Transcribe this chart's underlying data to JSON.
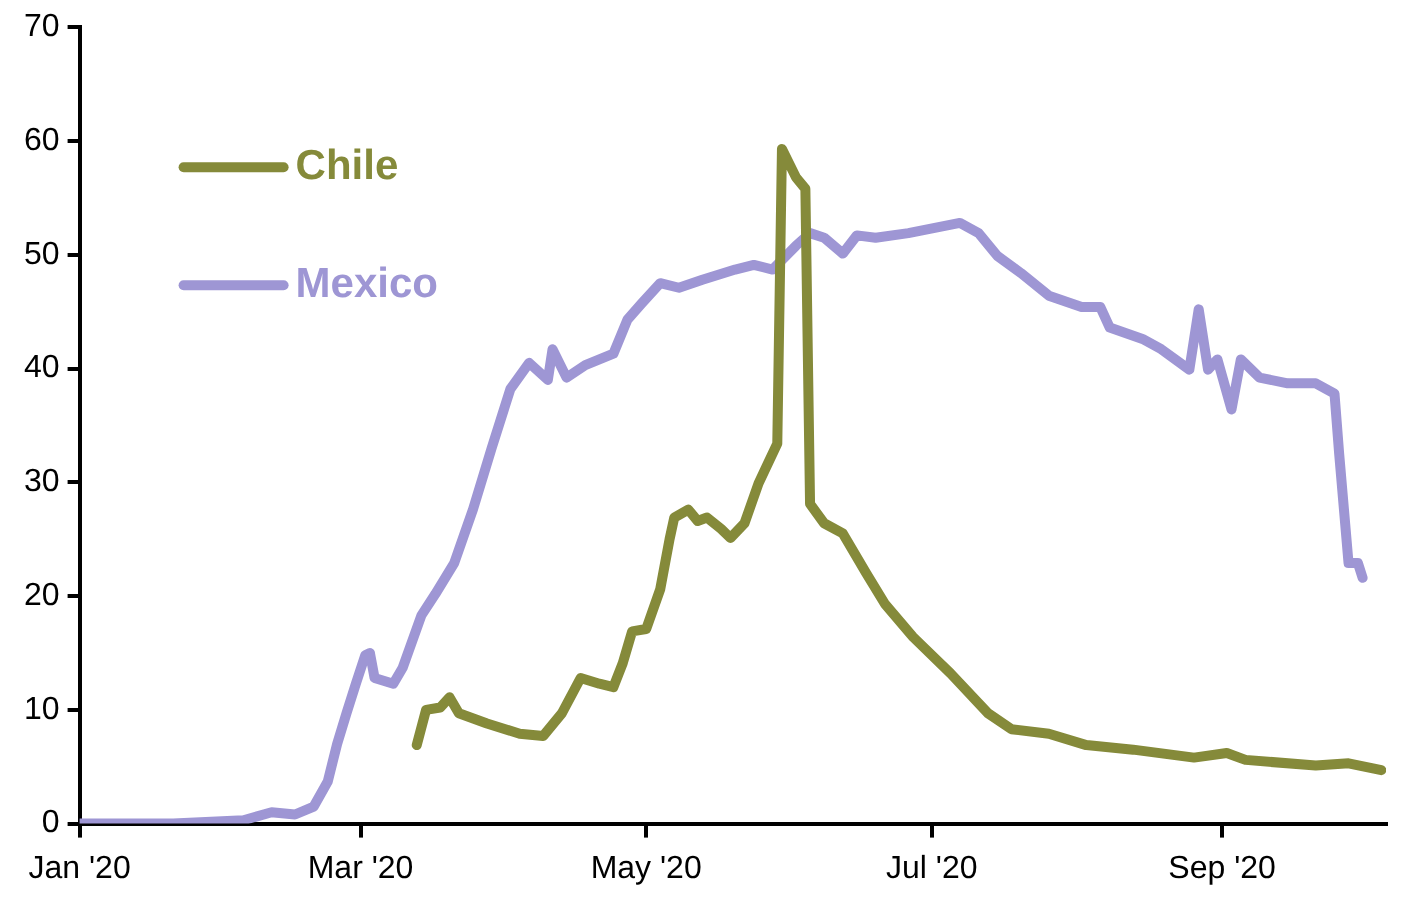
{
  "chart_data": {
    "type": "line",
    "xlim": [
      "2020-01-01",
      "2020-10-06"
    ],
    "xticks": [
      {
        "value": "2020-01-01",
        "label": "Jan '20"
      },
      {
        "value": "2020-03-01",
        "label": "Mar '20"
      },
      {
        "value": "2020-05-01",
        "label": "May '20"
      },
      {
        "value": "2020-07-01",
        "label": "Jul '20"
      },
      {
        "value": "2020-09-01",
        "label": "Sep '20"
      }
    ],
    "ylim": [
      0,
      70
    ],
    "yticks": [
      0,
      10,
      20,
      30,
      40,
      50,
      60,
      70
    ],
    "grid": false,
    "legend": "top left",
    "marker": "none",
    "line_style": "solid",
    "series": [
      {
        "name": "Chile",
        "color": "#858a3a",
        "x": [
          "2020-03-13",
          "2020-03-15",
          "2020-03-18",
          "2020-03-20",
          "2020-03-22",
          "2020-03-28",
          "2020-04-04",
          "2020-04-09",
          "2020-04-13",
          "2020-04-17",
          "2020-04-21",
          "2020-04-24",
          "2020-04-26",
          "2020-04-28",
          "2020-05-01",
          "2020-05-04",
          "2020-05-06",
          "2020-05-07",
          "2020-05-10",
          "2020-05-12",
          "2020-05-14",
          "2020-05-17",
          "2020-05-19",
          "2020-05-22",
          "2020-05-25",
          "2020-05-29",
          "2020-05-30",
          "2020-06-02",
          "2020-06-04",
          "2020-06-05",
          "2020-06-08",
          "2020-06-12",
          "2020-06-17",
          "2020-06-21",
          "2020-06-27",
          "2020-07-05",
          "2020-07-13",
          "2020-07-18",
          "2020-07-26",
          "2020-08-03",
          "2020-08-13",
          "2020-08-26",
          "2020-09-02",
          "2020-09-06",
          "2020-09-21",
          "2020-09-28",
          "2020-10-05"
        ],
        "values": [
          6.9,
          10,
          10.2,
          11.1,
          9.7,
          8.8,
          7.9,
          7.7,
          9.7,
          12.8,
          12.3,
          12,
          14.1,
          16.9,
          17.1,
          20.6,
          25,
          26.9,
          27.6,
          26.6,
          26.9,
          25.9,
          25.1,
          26.4,
          29.9,
          33.4,
          59.3,
          56.8,
          55.8,
          28.1,
          26.4,
          25.5,
          22,
          19.3,
          16.4,
          13.2,
          9.7,
          8.3,
          7.9,
          6.9,
          6.5,
          5.8,
          6.2,
          5.6,
          5.1,
          5.3,
          4.7
        ]
      },
      {
        "name": "Mexico",
        "color": "#9e96d4",
        "x": [
          "2020-01-01",
          "2020-01-21",
          "2020-02-05",
          "2020-02-11",
          "2020-02-16",
          "2020-02-20",
          "2020-02-23",
          "2020-02-25",
          "2020-02-27",
          "2020-02-29",
          "2020-03-02",
          "2020-03-03",
          "2020-03-04",
          "2020-03-08",
          "2020-03-10",
          "2020-03-14",
          "2020-03-17",
          "2020-03-21",
          "2020-03-25",
          "2020-03-29",
          "2020-04-02",
          "2020-04-06",
          "2020-04-10",
          "2020-04-11",
          "2020-04-14",
          "2020-04-18",
          "2020-04-24",
          "2020-04-27",
          "2020-04-30",
          "2020-05-04",
          "2020-05-08",
          "2020-05-13",
          "2020-05-20",
          "2020-05-24",
          "2020-05-28",
          "2020-06-02",
          "2020-06-05",
          "2020-06-08",
          "2020-06-12",
          "2020-06-15",
          "2020-06-19",
          "2020-06-26",
          "2020-07-07",
          "2020-07-11",
          "2020-07-15",
          "2020-07-20",
          "2020-07-26",
          "2020-08-02",
          "2020-08-06",
          "2020-08-08",
          "2020-08-15",
          "2020-08-19",
          "2020-08-25",
          "2020-08-27",
          "2020-08-29",
          "2020-08-31",
          "2020-09-03",
          "2020-09-05",
          "2020-09-09",
          "2020-09-15",
          "2020-09-21",
          "2020-09-25",
          "2020-09-26",
          "2020-09-28",
          "2020-09-30",
          "2020-10-01"
        ],
        "values": [
          0,
          0,
          0.3,
          1,
          0.8,
          1.5,
          3.7,
          7,
          9.7,
          12.3,
          14.8,
          15,
          12.8,
          12.3,
          13.7,
          18.3,
          20.2,
          22.9,
          27.6,
          33,
          38.2,
          40.5,
          39,
          41.7,
          39.2,
          40.3,
          41.3,
          44.3,
          45.7,
          47.5,
          47.1,
          47.8,
          48.7,
          49.1,
          48.7,
          50.8,
          51.9,
          51.5,
          50.1,
          51.7,
          51.5,
          51.9,
          52.8,
          51.9,
          49.9,
          48.4,
          46.4,
          45.4,
          45.4,
          43.6,
          42.6,
          41.7,
          39.9,
          45.2,
          39.9,
          40.8,
          36.4,
          40.8,
          39.2,
          38.7,
          38.7,
          37.8,
          32.5,
          22.9,
          22.9,
          21.6
        ]
      }
    ]
  }
}
